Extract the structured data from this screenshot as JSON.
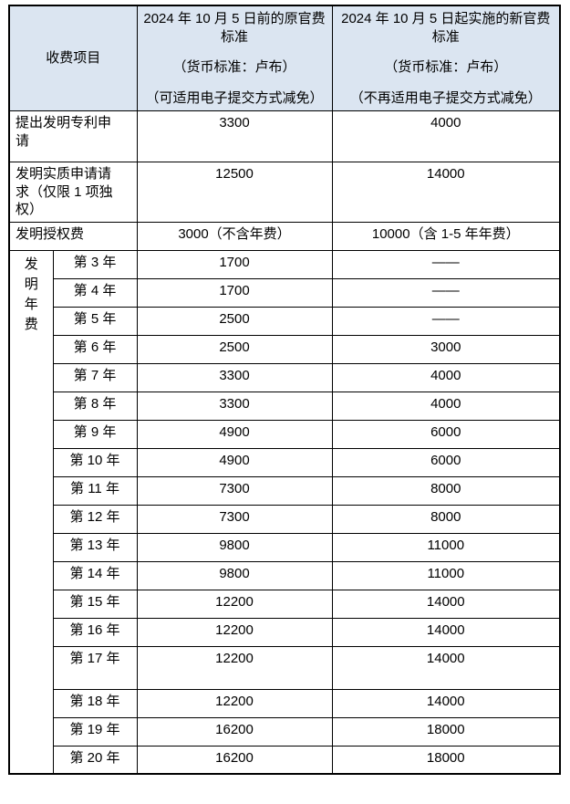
{
  "colors": {
    "page_bg": "#ffffff",
    "header_bg": "#dbe5f1",
    "border": "#000000",
    "text": "#000000"
  },
  "table": {
    "header": {
      "item_col": "收费项目",
      "old_col": {
        "title": "2024 年 10 月 5 日前的原官费标准",
        "currency": "（货币标准：卢布）",
        "note": "（可适用电子提交方式减免）"
      },
      "new_col": {
        "title": "2024 年 10 月 5 日起实施的新官费标准",
        "currency": "（货币标准：卢布）",
        "note": "（不再适用电子提交方式减免）"
      }
    },
    "rows": [
      {
        "label": "提出发明专利申请",
        "old": "3300",
        "new": "4000"
      },
      {
        "label": "发明实质申请请求（仅限 1 项独权）",
        "old": "12500",
        "new": "14000"
      },
      {
        "label": "发明授权费",
        "old": "3000（不含年费）",
        "new": "10000（含 1-5 年年费）"
      }
    ],
    "annual": {
      "group_label": "发明年费",
      "rows": [
        {
          "year": "第 3 年",
          "old": "1700",
          "new": "——"
        },
        {
          "year": "第 4 年",
          "old": "1700",
          "new": "——"
        },
        {
          "year": "第 5 年",
          "old": "2500",
          "new": "——"
        },
        {
          "year": "第 6 年",
          "old": "2500",
          "new": "3000"
        },
        {
          "year": "第 7 年",
          "old": "3300",
          "new": "4000"
        },
        {
          "year": "第 8 年",
          "old": "3300",
          "new": "4000"
        },
        {
          "year": "第 9 年",
          "old": "4900",
          "new": "6000"
        },
        {
          "year": "第 10 年",
          "old": "4900",
          "new": "6000"
        },
        {
          "year": "第 11 年",
          "old": "7300",
          "new": "8000"
        },
        {
          "year": "第 12 年",
          "old": "7300",
          "new": "8000"
        },
        {
          "year": "第 13 年",
          "old": "9800",
          "new": "11000"
        },
        {
          "year": "第 14 年",
          "old": "9800",
          "new": "11000"
        },
        {
          "year": "第 15 年",
          "old": "12200",
          "new": "14000"
        },
        {
          "year": "第 16 年",
          "old": "12200",
          "new": "14000"
        },
        {
          "year": "第 17 年",
          "old": "12200",
          "new": "14000"
        },
        {
          "year": "第 18 年",
          "old": "12200",
          "new": "14000"
        },
        {
          "year": "第 19 年",
          "old": "16200",
          "new": "18000"
        },
        {
          "year": "第 20 年",
          "old": "16200",
          "new": "18000"
        }
      ]
    }
  }
}
